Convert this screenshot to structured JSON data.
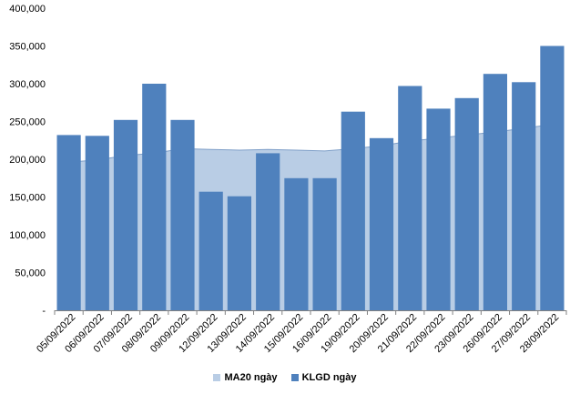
{
  "chart_data": {
    "type": "bar",
    "categories": [
      "05/09/2022",
      "06/09/2022",
      "07/09/2022",
      "08/09/2022",
      "09/09/2022",
      "12/09/2022",
      "13/09/2022",
      "14/09/2022",
      "15/09/2022",
      "16/09/2022",
      "19/09/2022",
      "20/09/2022",
      "21/09/2022",
      "22/09/2022",
      "23/09/2022",
      "26/09/2022",
      "27/09/2022",
      "28/09/2022"
    ],
    "series": [
      {
        "name": "KLGD ngày",
        "type": "bar",
        "color": "#4f81bd",
        "values": [
          232000,
          231000,
          252000,
          300000,
          252000,
          157000,
          151000,
          208000,
          175000,
          175000,
          263000,
          228000,
          297000,
          267000,
          281000,
          313000,
          302000,
          350000
        ]
      },
      {
        "name": "MA20 ngày",
        "type": "area",
        "color": "#b9cde5",
        "values": [
          196000,
          199000,
          205000,
          208000,
          214000,
          213000,
          212000,
          213000,
          212000,
          211000,
          214000,
          218000,
          224000,
          228000,
          232000,
          236000,
          241000,
          246000
        ]
      }
    ],
    "ylim": [
      0,
      400000
    ],
    "yticks": [
      0,
      50000,
      100000,
      150000,
      200000,
      250000,
      300000,
      350000,
      400000
    ],
    "ytick_labels": [
      "-",
      "50,000",
      "100,000",
      "150,000",
      "200,000",
      "250,000",
      "300,000",
      "350,000",
      "400,000"
    ],
    "legend_position": "bottom",
    "grid": false
  }
}
